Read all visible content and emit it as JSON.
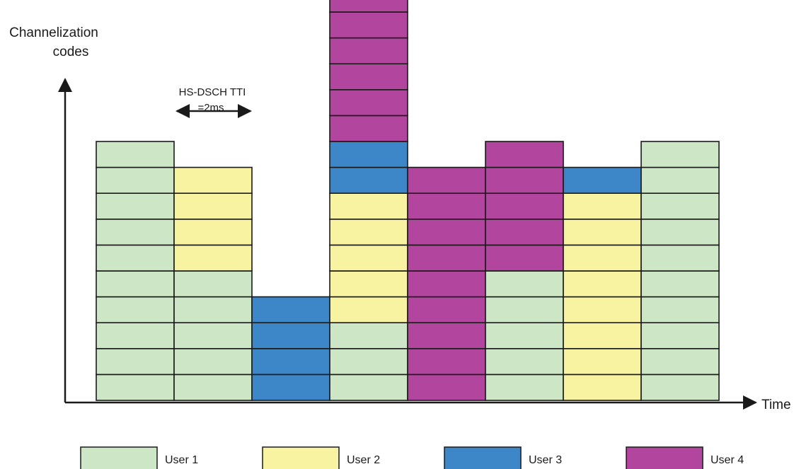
{
  "y_axis_label": [
    "Channelization",
    "codes"
  ],
  "x_axis_label": "Time",
  "tti_annotation": [
    "HS-DSCH TTI",
    "=2ms"
  ],
  "colors": {
    "user1": "#cde6c6",
    "user2": "#f7f3a1",
    "user3": "#3d87c9",
    "user4": "#b2459d",
    "outline": "#1a1a1a"
  },
  "legend": [
    {
      "key": "user1",
      "label": "User 1"
    },
    {
      "key": "user2",
      "label": "User 2"
    },
    {
      "key": "user3",
      "label": "User 3"
    },
    {
      "key": "user4",
      "label": "User 4"
    }
  ],
  "slots": [
    [
      "user1",
      "user1",
      "user1",
      "user1",
      "user1",
      "user1",
      "user1",
      "user1",
      "user1",
      "user1"
    ],
    [
      "user1",
      "user1",
      "user1",
      "user1",
      "user1",
      "user2",
      "user2",
      "user2",
      "user2"
    ],
    [
      "user3",
      "user3",
      "user3",
      "user3"
    ],
    [
      "user1",
      "user1",
      "user1",
      "user2",
      "user2",
      "user2",
      "user2",
      "user2",
      "user3",
      "user3",
      "user4",
      "user4",
      "user4",
      "user4",
      "user4",
      "user4"
    ],
    [
      "user4",
      "user4",
      "user4",
      "user4",
      "user4",
      "user4",
      "user4",
      "user4",
      "user4"
    ],
    [
      "user1",
      "user1",
      "user1",
      "user1",
      "user1",
      "user4",
      "user4",
      "user4",
      "user4",
      "user4"
    ],
    [
      "user2",
      "user2",
      "user2",
      "user2",
      "user2",
      "user2",
      "user2",
      "user2",
      "user3"
    ],
    [
      "user1",
      "user1",
      "user1",
      "user1",
      "user1",
      "user1",
      "user1",
      "user1",
      "user1",
      "user1"
    ]
  ]
}
